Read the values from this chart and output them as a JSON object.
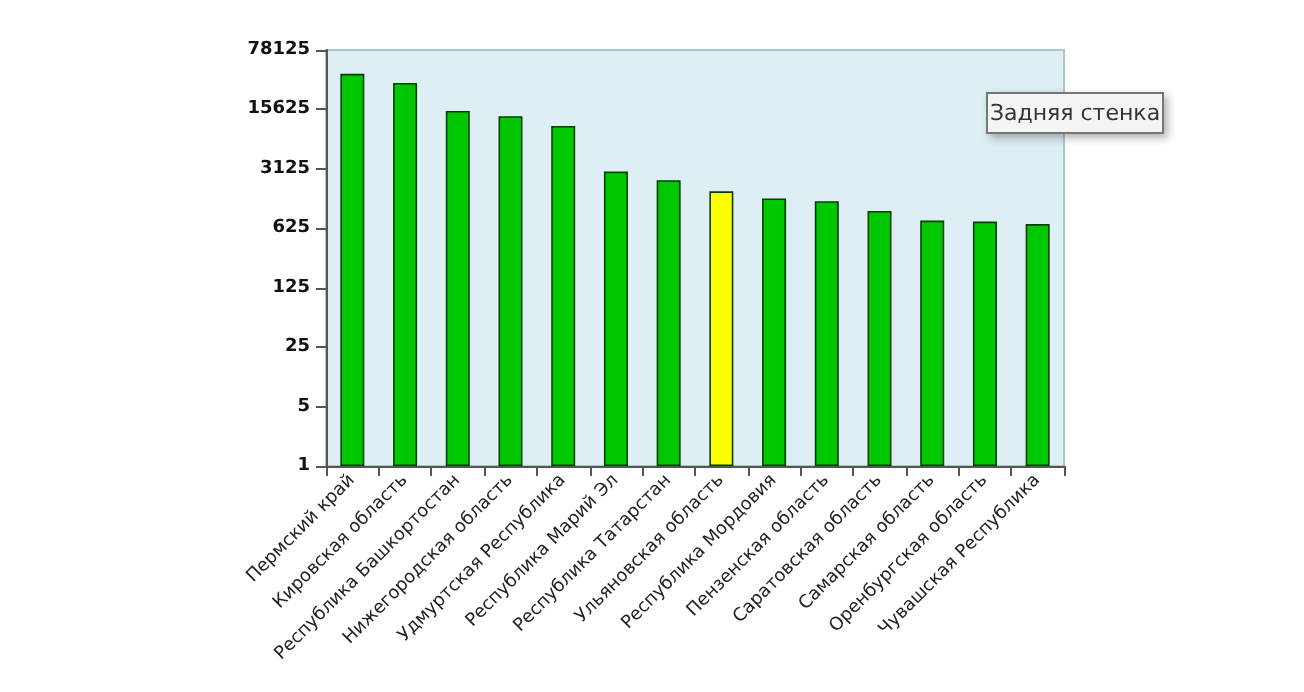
{
  "chart_data": {
    "type": "bar",
    "categories": [
      "Пермский край",
      "Кировская область",
      "Республика Башкортостан",
      "Нижегородская область",
      "Удмуртская Республика",
      "Республика Марий Эл",
      "Республика Татарстан",
      "Ульяновская область",
      "Республика Мордовия",
      "Пензенская область",
      "Саратовская область",
      "Самарская область",
      "Оренбургская область",
      "Чувашская Республика"
    ],
    "values": [
      41000,
      32000,
      15000,
      13000,
      10000,
      2900,
      2300,
      1700,
      1400,
      1300,
      1000,
      770,
      750,
      700
    ],
    "colors": [
      "#00c800",
      "#00c800",
      "#00c800",
      "#00c800",
      "#00c800",
      "#00c800",
      "#00c800",
      "#ffff00",
      "#00c800",
      "#00c800",
      "#00c800",
      "#00c800",
      "#00c800",
      "#00c800"
    ],
    "log": true,
    "ylim": [
      1,
      78125
    ],
    "yticks": [
      1,
      5,
      25,
      125,
      625,
      3125,
      15625,
      78125
    ],
    "annotations": [
      "Задняя стенка"
    ]
  }
}
